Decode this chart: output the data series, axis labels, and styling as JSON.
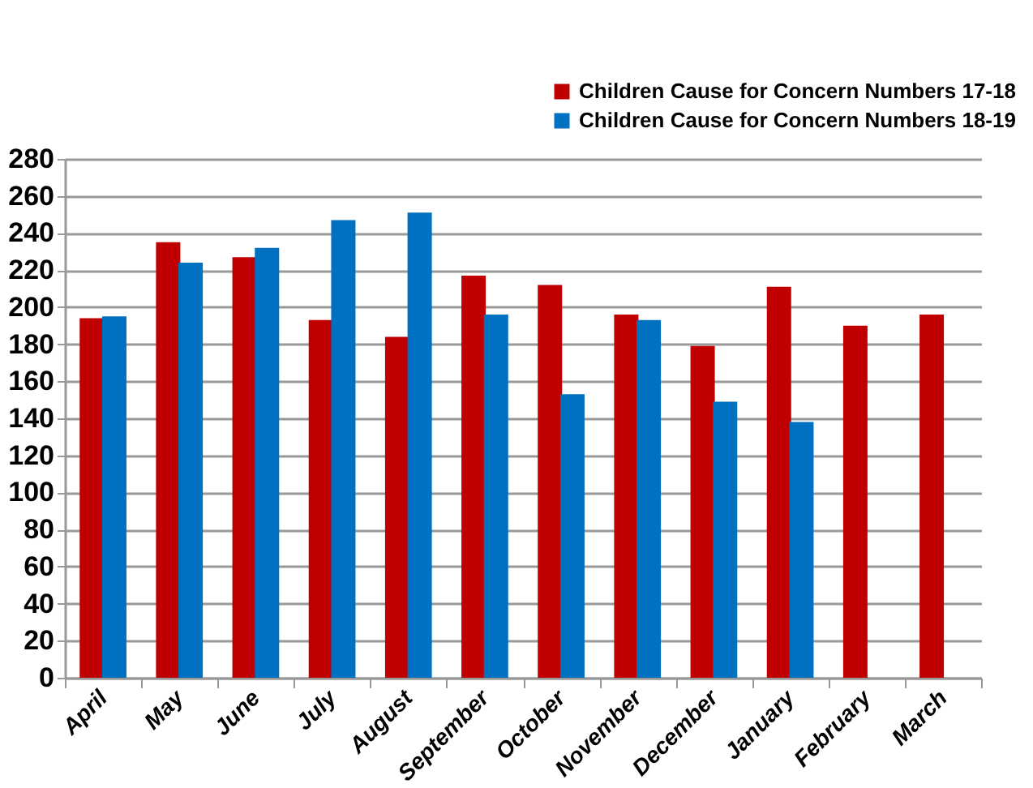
{
  "chart_data": {
    "type": "bar",
    "categories": [
      "April",
      "May",
      "June",
      "July",
      "August",
      "September",
      "October",
      "November",
      "December",
      "January",
      "February",
      "March"
    ],
    "series": [
      {
        "name": "Children Cause for Concern Numbers 17-18",
        "color": "#c00000",
        "values": [
          194,
          235,
          227,
          193,
          184,
          217,
          212,
          196,
          179,
          211,
          190,
          196
        ]
      },
      {
        "name": "Children Cause for Concern Numbers 18-19",
        "color": "#0070c0",
        "values": [
          195,
          224,
          232,
          247,
          251,
          196,
          153,
          193,
          149,
          138,
          null,
          null
        ]
      }
    ],
    "ylim": [
      0,
      280
    ],
    "yticks": [
      0,
      20,
      40,
      60,
      80,
      100,
      120,
      140,
      160,
      180,
      200,
      220,
      240,
      260,
      280
    ],
    "grid": "y",
    "legend": "top right"
  }
}
